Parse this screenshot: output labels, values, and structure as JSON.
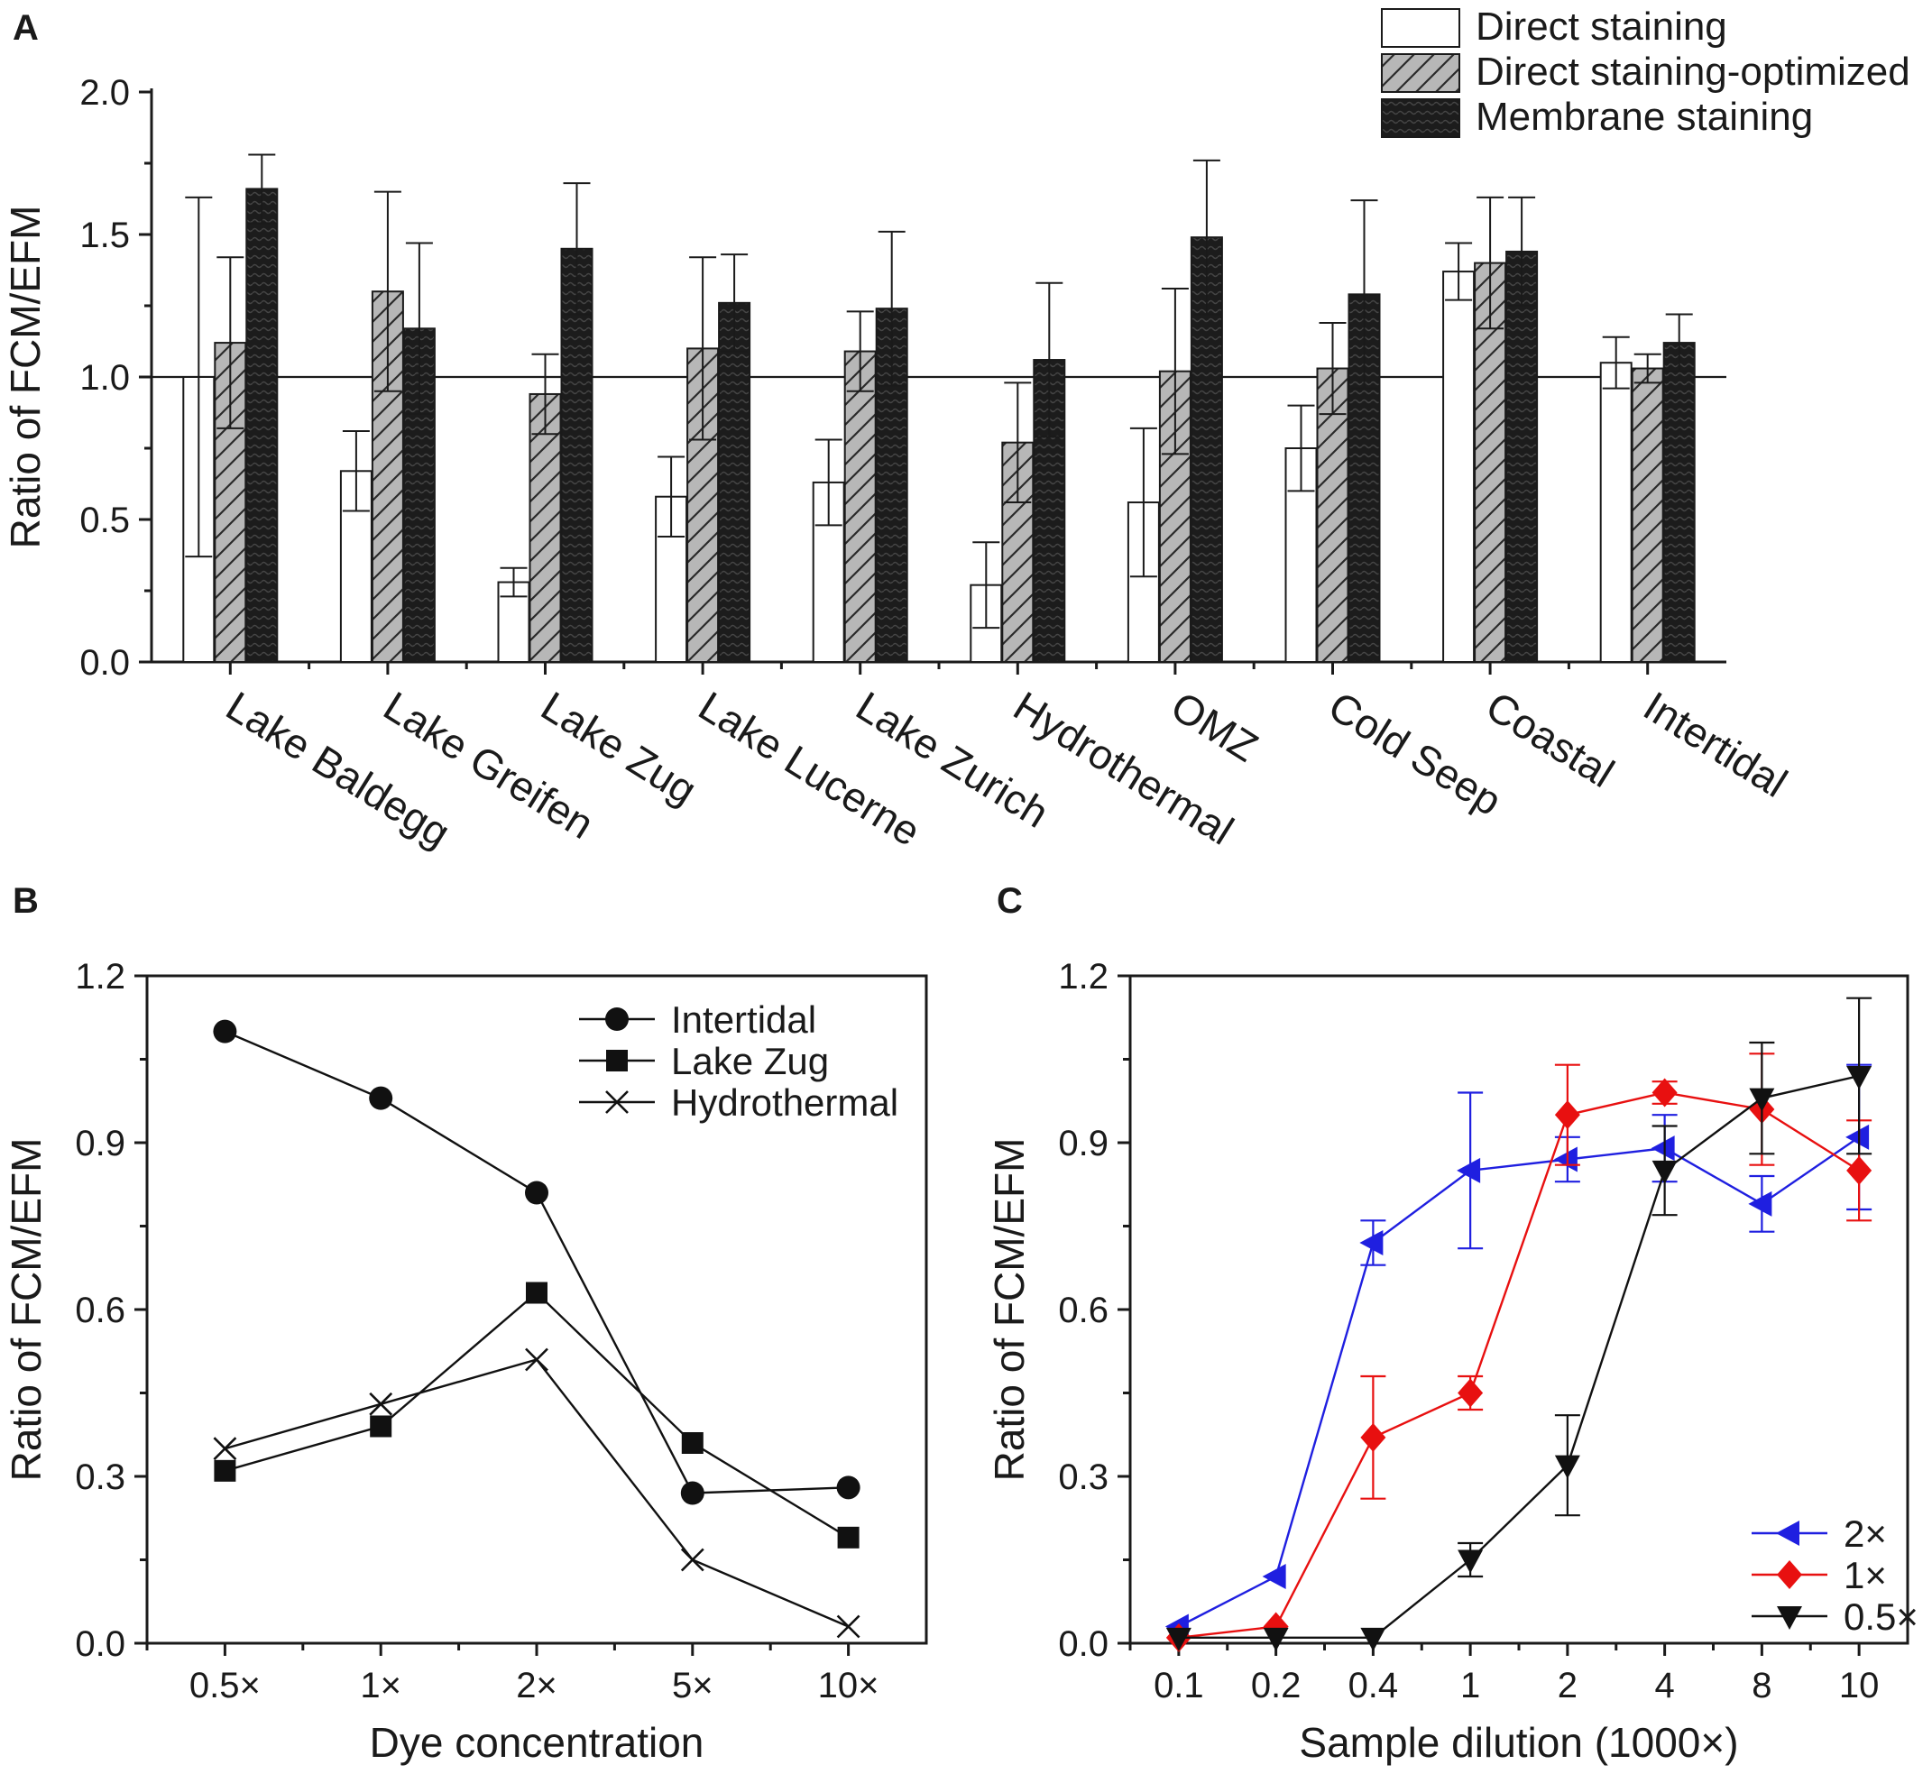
{
  "chart_data": [
    {
      "panel": "A",
      "type": "bar",
      "ylabel": "Ratio of FCM/EFM",
      "ylim": [
        0,
        2.0
      ],
      "yticks": [
        "0.0",
        "0.5",
        "1.0",
        "1.5",
        "2.0"
      ],
      "reference_line": 1.0,
      "categories": [
        "Lake Baldegg",
        "Lake Greifen",
        "Lake Zug",
        "Lake Lucerne",
        "Lake Zurich",
        "Hydrothermal",
        "OMZ",
        "Cold Seep",
        "Coastal",
        "Intertidal"
      ],
      "series": [
        {
          "name": "Direct staining",
          "fill": "white",
          "values": [
            1.0,
            0.67,
            0.28,
            0.58,
            0.63,
            0.27,
            0.56,
            0.75,
            1.37,
            1.05
          ],
          "errors": [
            0.63,
            0.14,
            0.05,
            0.14,
            0.15,
            0.15,
            0.26,
            0.15,
            0.1,
            0.09
          ]
        },
        {
          "name": "Direct staining-optimized",
          "fill": "hatch",
          "values": [
            1.12,
            1.3,
            0.94,
            1.1,
            1.09,
            0.77,
            1.02,
            1.03,
            1.4,
            1.03
          ],
          "errors": [
            0.3,
            0.35,
            0.14,
            0.32,
            0.14,
            0.21,
            0.29,
            0.16,
            0.23,
            0.05
          ]
        },
        {
          "name": "Membrane staining",
          "fill": "dark",
          "values": [
            1.66,
            1.17,
            1.45,
            1.26,
            1.24,
            1.06,
            1.49,
            1.29,
            1.44,
            1.12
          ],
          "errors": [
            0.12,
            0.3,
            0.23,
            0.17,
            0.27,
            0.27,
            0.27,
            0.33,
            0.19,
            0.1
          ]
        }
      ],
      "legend": [
        "Direct staining",
        "Direct staining-optimized",
        "Membrane staining"
      ]
    },
    {
      "panel": "B",
      "type": "line",
      "xlabel": "Dye concentration",
      "ylabel": "Ratio of FCM/EFM",
      "ylim": [
        0,
        1.2
      ],
      "yticks": [
        "0.0",
        "0.3",
        "0.6",
        "0.9",
        "1.2"
      ],
      "categories": [
        "0.5×",
        "1×",
        "2×",
        "5×",
        "10×"
      ],
      "series": [
        {
          "name": "Intertidal",
          "marker": "circle",
          "values": [
            1.1,
            0.98,
            0.81,
            0.27,
            0.28
          ]
        },
        {
          "name": "Lake Zug",
          "marker": "square",
          "values": [
            0.31,
            0.39,
            0.63,
            0.36,
            0.19
          ]
        },
        {
          "name": "Hydrothermal",
          "marker": "x",
          "values": [
            0.35,
            0.43,
            0.51,
            0.15,
            0.03
          ]
        }
      ]
    },
    {
      "panel": "C",
      "type": "line",
      "xlabel": "Sample dilution (1000×)",
      "ylabel": "Ratio of FCM/EFM",
      "ylim": [
        0,
        1.2
      ],
      "yticks": [
        "0.0",
        "0.3",
        "0.6",
        "0.9",
        "1.2"
      ],
      "categories": [
        "0.1",
        "0.2",
        "0.4",
        "1",
        "2",
        "4",
        "8",
        "10"
      ],
      "series": [
        {
          "name": "2×",
          "marker": "triangle-left",
          "color": "#1f1fe0",
          "values": [
            0.03,
            0.12,
            0.72,
            0.85,
            0.87,
            0.89,
            0.79,
            0.91
          ],
          "errors": [
            0,
            0,
            0.04,
            0.14,
            0.04,
            0.06,
            0.05,
            0.13
          ]
        },
        {
          "name": "1×",
          "marker": "diamond",
          "color": "#e81010",
          "values": [
            0.01,
            0.03,
            0.37,
            0.45,
            0.95,
            0.99,
            0.96,
            0.85
          ],
          "errors": [
            0,
            0,
            0.11,
            0.03,
            0.09,
            0.02,
            0.1,
            0.09
          ]
        },
        {
          "name": "0.5×",
          "marker": "triangle-down",
          "color": "#111111",
          "values": [
            0.01,
            0.01,
            0.01,
            0.15,
            0.32,
            0.85,
            0.98,
            1.02
          ],
          "errors": [
            0,
            0,
            0,
            0.03,
            0.09,
            0.08,
            0.1,
            0.14
          ]
        }
      ]
    }
  ],
  "labels": {
    "panel_a": "A",
    "panel_b": "B",
    "panel_c": "C"
  }
}
